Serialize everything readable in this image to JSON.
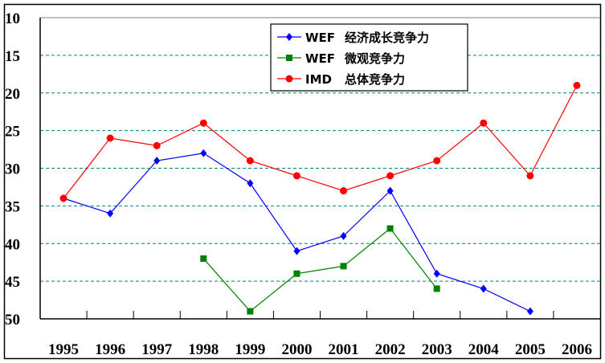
{
  "chart_data": {
    "type": "line",
    "title": "",
    "xlabel": "",
    "ylabel": "",
    "categories": [
      "1995",
      "1996",
      "1997",
      "1998",
      "1999",
      "2000",
      "2001",
      "2002",
      "2003",
      "2004",
      "2005",
      "2006"
    ],
    "ylim": [
      10,
      50
    ],
    "y_inverted": true,
    "yticks": [
      "10",
      "15",
      "20",
      "25",
      "30",
      "35",
      "40",
      "45",
      "50"
    ],
    "grid": true,
    "legend_position": "top-center",
    "series": [
      {
        "name": "WEF",
        "label": "经济成长竞争力",
        "color": "#0000ff",
        "marker": "diamond",
        "values": [
          34,
          36,
          29,
          28,
          32,
          41,
          39,
          33,
          44,
          46,
          49,
          null
        ]
      },
      {
        "name": "WEF",
        "label": "微观竞争力",
        "color": "#008000",
        "marker": "square",
        "values": [
          null,
          null,
          null,
          42,
          49,
          44,
          43,
          38,
          46,
          null,
          null,
          null
        ]
      },
      {
        "name": "IMD",
        "label": "总体竞争力",
        "color": "#ff0000",
        "marker": "circle",
        "values": [
          34,
          26,
          27,
          24,
          29,
          31,
          33,
          31,
          29,
          24,
          31,
          19
        ]
      }
    ]
  }
}
